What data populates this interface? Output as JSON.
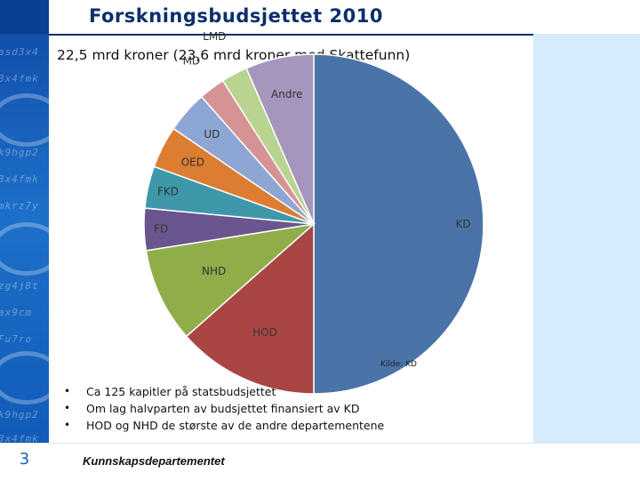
{
  "slide": {
    "title": "Forskningsbudsjettet 2010",
    "subtitle": "22,5 mrd kroner (23,6 mrd kroner med Skattefunn)",
    "source": "Kilde: KD",
    "bullets": [
      "Ca 125 kapitler på statsbudsjettet",
      "Om lag halvparten av budsjettet finansiert av KD",
      "HOD og NHD de største av de andre departementene"
    ],
    "page_number": "3",
    "footer": "Kunnskapsdepartementet"
  },
  "chart_data": {
    "type": "pie",
    "title": "",
    "start": "12 o'clock, clockwise",
    "legend": "none (labels on slices)",
    "slices": [
      {
        "label": "KD",
        "value": 50.0,
        "color": "#4a74a8"
      },
      {
        "label": "HOD",
        "value": 13.5,
        "color": "#a94644"
      },
      {
        "label": "NHD",
        "value": 9.0,
        "color": "#8fae4a"
      },
      {
        "label": "FD",
        "value": 4.0,
        "color": "#6a558f"
      },
      {
        "label": "FKD",
        "value": 4.0,
        "color": "#3f98aa"
      },
      {
        "label": "OED",
        "value": 4.0,
        "color": "#dc7d32"
      },
      {
        "label": "UD",
        "value": 4.0,
        "color": "#8ea6d4"
      },
      {
        "label": "MD",
        "value": 2.5,
        "color": "#d69393"
      },
      {
        "label": "LMD",
        "value": 2.5,
        "color": "#b9d391"
      },
      {
        "label": "Andre",
        "value": 6.5,
        "color": "#a596bd"
      }
    ]
  }
}
